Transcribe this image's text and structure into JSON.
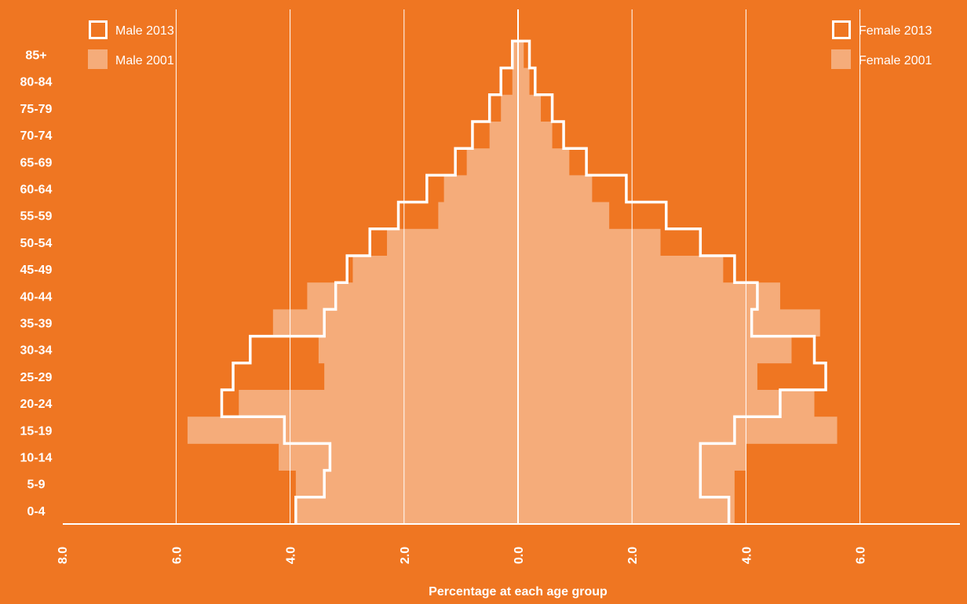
{
  "colors": {
    "background": "#EF7622",
    "fill_2001": "#F5AC7A",
    "outline_2013": "#FFFFFF",
    "gridline": "#FFFFFF"
  },
  "chart_data": {
    "type": "bar",
    "subtype": "population-pyramid",
    "title": "",
    "xlabel": "Percentage at each age group",
    "ylabel": "",
    "xlim": [
      -8,
      8
    ],
    "x_ticks": [
      "8.0",
      "6.0",
      "4.0",
      "2.0",
      "0.0",
      "2.0",
      "4.0",
      "6.0",
      "8.0"
    ],
    "x_tick_values": [
      -8,
      -6,
      -4,
      -2,
      0,
      2,
      4,
      6,
      8
    ],
    "grid": true,
    "legend_placement": "top-left and top-right",
    "categories": [
      "0-4",
      "5-9",
      "10-14",
      "15-19",
      "20-24",
      "25-29",
      "30-34",
      "35-39",
      "40-44",
      "45-49",
      "50-54",
      "55-59",
      "60-64",
      "65-69",
      "70-74",
      "75-79",
      "80-84",
      "85+"
    ],
    "series": [
      {
        "name": "Male 2013",
        "side": "left",
        "style": "outline",
        "values": [
          3.9,
          3.4,
          3.3,
          4.1,
          5.2,
          5.0,
          4.7,
          3.4,
          3.2,
          3.0,
          2.6,
          2.1,
          1.6,
          1.1,
          0.8,
          0.5,
          0.3,
          0.1
        ]
      },
      {
        "name": "Male 2001",
        "side": "left",
        "style": "filled",
        "values": [
          3.9,
          3.9,
          4.2,
          5.8,
          4.9,
          3.4,
          3.5,
          4.3,
          3.7,
          2.9,
          2.3,
          1.4,
          1.3,
          0.9,
          0.5,
          0.3,
          0.1,
          0.1
        ]
      },
      {
        "name": "Female 2013",
        "side": "right",
        "style": "outline",
        "values": [
          3.7,
          3.2,
          3.2,
          3.8,
          4.6,
          5.4,
          5.2,
          4.1,
          4.2,
          3.8,
          3.2,
          2.6,
          1.9,
          1.2,
          0.8,
          0.6,
          0.3,
          0.2
        ]
      },
      {
        "name": "Female 2001",
        "side": "right",
        "style": "filled",
        "values": [
          3.8,
          3.8,
          4.0,
          5.6,
          5.2,
          4.2,
          4.8,
          5.3,
          4.6,
          3.6,
          2.5,
          1.6,
          1.3,
          0.9,
          0.6,
          0.4,
          0.2,
          0.1
        ]
      }
    ]
  }
}
